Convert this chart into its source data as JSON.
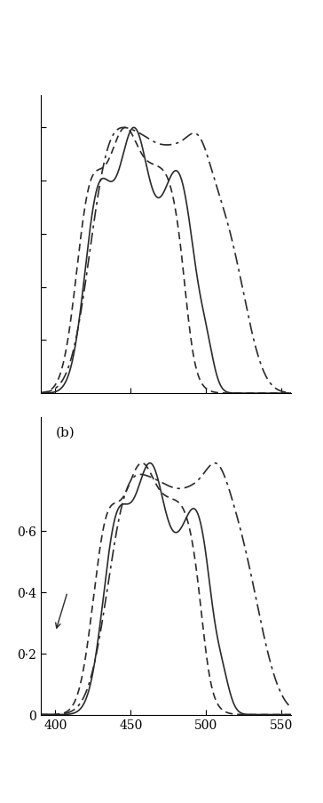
{
  "xmin": 390,
  "xmax": 555,
  "xticks": [
    400,
    450,
    500,
    550
  ],
  "panel_b_label": "(b)",
  "yticks_b": [
    0,
    0.2,
    0.4,
    0.6
  ],
  "ytick_labels_b": [
    "0",
    "0·2",
    "0·4",
    "0·6"
  ],
  "line_color": "#2a2a2a",
  "lw": 1.2
}
